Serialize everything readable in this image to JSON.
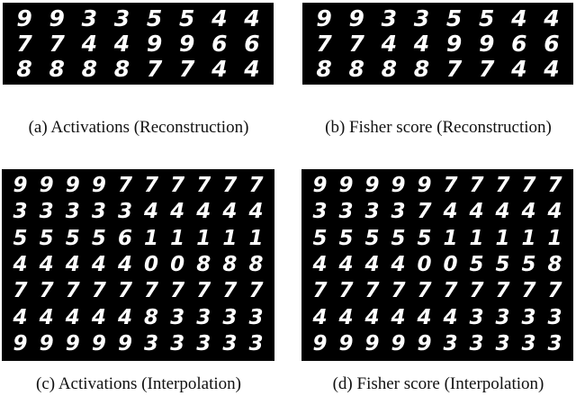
{
  "figures": [
    {
      "caption": "(a) Activations (Reconstruction)",
      "digits": [
        [
          "9",
          "9",
          "3",
          "3",
          "5",
          "5",
          "4",
          "4"
        ],
        [
          "7",
          "7",
          "4",
          "4",
          "9",
          "9",
          "6",
          "6"
        ],
        [
          "8",
          "8",
          "8",
          "8",
          "7",
          "7",
          "4",
          "4"
        ]
      ]
    },
    {
      "caption": "(b) Fisher score (Reconstruction)",
      "digits": [
        [
          "9",
          "9",
          "3",
          "3",
          "5",
          "5",
          "4",
          "4"
        ],
        [
          "7",
          "7",
          "4",
          "4",
          "9",
          "9",
          "6",
          "6"
        ],
        [
          "8",
          "8",
          "8",
          "8",
          "7",
          "7",
          "4",
          "4"
        ]
      ]
    },
    {
      "caption": "(c) Activations (Interpolation)",
      "digits": [
        [
          "9",
          "9",
          "9",
          "9",
          "7",
          "7",
          "7",
          "7",
          "7",
          "7"
        ],
        [
          "3",
          "3",
          "3",
          "3",
          "3",
          "4",
          "4",
          "4",
          "4",
          "4"
        ],
        [
          "5",
          "5",
          "5",
          "5",
          "6",
          "1",
          "1",
          "1",
          "1",
          "1"
        ],
        [
          "4",
          "4",
          "4",
          "4",
          "4",
          "0",
          "0",
          "8",
          "8",
          "8"
        ],
        [
          "7",
          "7",
          "7",
          "7",
          "7",
          "7",
          "7",
          "7",
          "7",
          "7"
        ],
        [
          "4",
          "4",
          "4",
          "4",
          "4",
          "8",
          "3",
          "3",
          "3",
          "3"
        ],
        [
          "9",
          "9",
          "9",
          "9",
          "9",
          "3",
          "3",
          "3",
          "3",
          "3"
        ]
      ]
    },
    {
      "caption": "(d) Fisher score (Interpolation)",
      "digits": [
        [
          "9",
          "9",
          "9",
          "9",
          "9",
          "7",
          "7",
          "7",
          "7",
          "7"
        ],
        [
          "3",
          "3",
          "3",
          "3",
          "7",
          "4",
          "4",
          "4",
          "4",
          "4"
        ],
        [
          "5",
          "5",
          "5",
          "5",
          "5",
          "1",
          "1",
          "1",
          "1",
          "1"
        ],
        [
          "4",
          "4",
          "4",
          "4",
          "0",
          "0",
          "5",
          "5",
          "5",
          "8"
        ],
        [
          "7",
          "7",
          "7",
          "7",
          "7",
          "7",
          "7",
          "7",
          "7",
          "7"
        ],
        [
          "4",
          "4",
          "4",
          "4",
          "4",
          "4",
          "3",
          "3",
          "3",
          "3"
        ],
        [
          "9",
          "9",
          "9",
          "9",
          "9",
          "3",
          "3",
          "3",
          "3",
          "3"
        ]
      ]
    }
  ]
}
